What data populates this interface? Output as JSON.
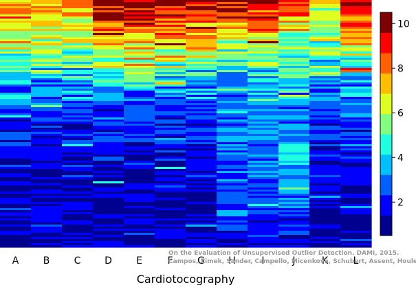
{
  "chart_data": {
    "type": "heatmap",
    "title": "",
    "xlabel": "Cardiotocography",
    "ylabel": "",
    "columns": [
      "A",
      "B",
      "C",
      "D",
      "E",
      "F",
      "G",
      "H",
      "I",
      "J",
      "K",
      "L"
    ],
    "colorbar": {
      "ticks": [
        "2",
        "4",
        "6",
        "8",
        "10"
      ],
      "tick_values": [
        2,
        4,
        6,
        8,
        10
      ],
      "range": [
        0.5,
        10.5
      ],
      "colors": [
        "#00008f",
        "#0000ff",
        "#0060ff",
        "#00bfff",
        "#20ffdf",
        "#80ff80",
        "#dfff20",
        "#ffbf00",
        "#ff6000",
        "#ff0000",
        "#800000"
      ]
    },
    "column_profiles": {
      "note": "",
      "A": [
        8,
        7,
        6,
        6,
        5,
        5,
        4,
        3,
        3,
        2,
        2,
        2,
        1.5,
        1.5,
        1.5,
        1.2,
        1.2,
        1.2,
        1.1,
        1
      ],
      "B": [
        8,
        7,
        6,
        6,
        5,
        5,
        4,
        3,
        3,
        2,
        2,
        2,
        1.5,
        1.5,
        1.5,
        1.2,
        1.2,
        1.2,
        1.1,
        1
      ],
      "C": [
        8.5,
        7.5,
        6.5,
        6,
        5.5,
        5,
        4,
        3,
        3,
        2,
        2,
        2,
        1.5,
        1.5,
        1.5,
        1.2,
        1.2,
        1.2,
        1.1,
        1
      ],
      "D": [
        10,
        9.5,
        8.5,
        7,
        6,
        5.5,
        4.5,
        3,
        2.5,
        2,
        2,
        1.8,
        1.5,
        1.5,
        1.5,
        1.2,
        1.2,
        1.2,
        1.1,
        1
      ],
      "E": [
        10,
        9.5,
        9,
        7,
        6,
        5.5,
        4.5,
        3,
        2.5,
        2,
        2,
        1.8,
        1.5,
        1.5,
        1.5,
        1.2,
        1.2,
        1.2,
        1.1,
        1
      ],
      "F": [
        9.5,
        9,
        8,
        7,
        6,
        5.5,
        4.5,
        3,
        2.5,
        2,
        2,
        1.8,
        1.5,
        1.5,
        1.5,
        1.2,
        1.2,
        1.2,
        1.1,
        1
      ],
      "G": [
        9.5,
        9,
        8,
        7,
        6,
        5,
        4,
        3,
        2.5,
        2,
        2,
        1.8,
        1.5,
        1.5,
        1.5,
        1.2,
        1.2,
        1.2,
        1.1,
        1
      ],
      "H": [
        10,
        9,
        7.5,
        6,
        5,
        4,
        3.5,
        3,
        3,
        2.5,
        3,
        3,
        2.5,
        2.5,
        2.5,
        2.5,
        2.5,
        2.5,
        2,
        1.5
      ],
      "I": [
        10,
        9,
        8,
        7,
        6,
        5,
        4,
        3.5,
        3,
        3,
        3,
        3,
        3,
        3,
        2.5,
        2.5,
        2.5,
        2,
        2,
        1.5
      ],
      "J": [
        9,
        8,
        7,
        6,
        5,
        4.5,
        4,
        3.5,
        3,
        3,
        3,
        3.5,
        4,
        3.5,
        3,
        3,
        2.5,
        2,
        2,
        1.5
      ],
      "K": [
        7,
        6,
        6,
        5.5,
        5,
        4.5,
        4,
        3,
        2.5,
        2,
        2,
        2,
        1.8,
        1.5,
        1.5,
        1.2,
        1.2,
        1.2,
        1.1,
        1
      ],
      "L": [
        10,
        9.5,
        8,
        7,
        6,
        5,
        4,
        3,
        3,
        2.5,
        2,
        2,
        1.8,
        1.5,
        1.5,
        1.2,
        1.2,
        1.2,
        1.1,
        1
      ]
    },
    "grid": false,
    "legend": "colorbar-right"
  },
  "credit_line_1": "On the Evaluation of Unsupervised Outlier Detection. DAMI, 2015.",
  "credit_line_2": "Campos, Zimek, Sander, Campello, Micenková, Schubert, Assent, Houle"
}
